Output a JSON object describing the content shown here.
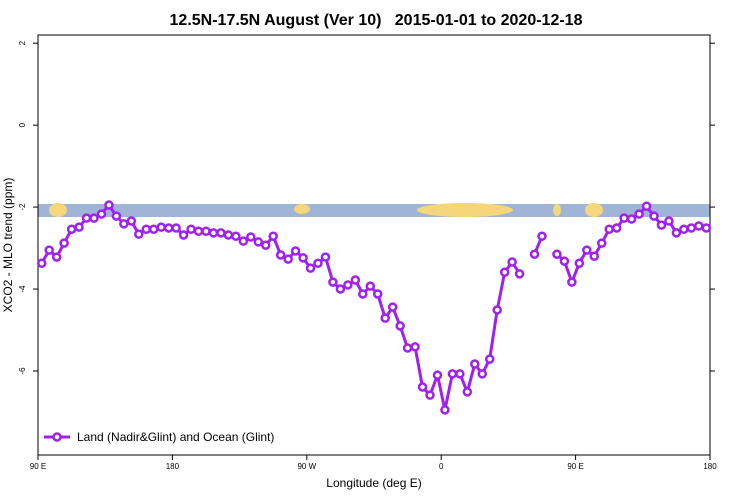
{
  "chart_data": {
    "type": "line",
    "title": "12.5N-17.5N August (Ver 10)   2015-01-01 to 2020-12-18",
    "xlabel": "Longitude (deg E)",
    "ylabel": "XCO2 - MLO trend (ppm)",
    "xlim": [
      90,
      540
    ],
    "ylim": [
      -8.05,
      2.2
    ],
    "xticks": [
      {
        "value": 90,
        "label": "90 E"
      },
      180,
      {
        "value": 270,
        "label": "90 W"
      },
      {
        "value": 360,
        "label": "0"
      },
      {
        "value": 450,
        "label": "90 E"
      },
      {
        "value": 540,
        "label": "180"
      }
    ],
    "yticks": [
      -6,
      -4,
      -2,
      0,
      2
    ],
    "legend": "bottom-left",
    "x": [
      92.5,
      97.5,
      102.5,
      107.5,
      112.5,
      117.5,
      122.5,
      127.5,
      132.5,
      137.5,
      142.5,
      147.5,
      152.5,
      157.5,
      162.5,
      167.5,
      172.5,
      177.5,
      182.5,
      187.5,
      192.5,
      197.5,
      202.5,
      207.5,
      212.5,
      217.5,
      222.5,
      227.5,
      232.5,
      237.5,
      242.5,
      247.5,
      252.5,
      257.5,
      262.5,
      267.5,
      272.5,
      277.5,
      282.5,
      287.5,
      292.5,
      297.5,
      302.5,
      307.5,
      312.5,
      317.5,
      322.5,
      327.5,
      332.5,
      337.5,
      342.5,
      347.5,
      352.5,
      357.5,
      362.5,
      367.5,
      372.5,
      377.5,
      382.5,
      387.5,
      392.5,
      397.5,
      402.5,
      407.5,
      412.5,
      417.5,
      422.5,
      427.5,
      432.5,
      437.5,
      442.5,
      447.5,
      452.5,
      457.5,
      462.5,
      467.5,
      472.5,
      477.5,
      482.5,
      487.5,
      492.5,
      497.5,
      502.5,
      507.5,
      512.5,
      517.5,
      522.5,
      527.5,
      532.5,
      537.5
    ],
    "series": [
      {
        "name": "Land (Nadir&Glint) and Ocean (Glint)",
        "color": "#a020f0",
        "values": [
          -3.37,
          -3.05,
          -3.22,
          -2.88,
          -2.54,
          -2.49,
          -2.27,
          -2.27,
          -2.17,
          -1.95,
          -2.22,
          -2.41,
          -2.34,
          -2.66,
          -2.54,
          -2.54,
          -2.49,
          -2.51,
          -2.51,
          -2.68,
          -2.54,
          -2.59,
          -2.59,
          -2.63,
          -2.63,
          -2.68,
          -2.71,
          -2.83,
          -2.73,
          -2.85,
          -2.93,
          -2.71,
          -3.17,
          -3.27,
          -3.07,
          -3.24,
          -3.49,
          -3.37,
          -3.22,
          -3.83,
          -4.0,
          -3.9,
          -3.78,
          -4.12,
          -3.93,
          -4.12,
          -4.71,
          -4.44,
          -4.9,
          -5.44,
          -5.41,
          -6.39,
          -6.59,
          -6.1,
          -6.95,
          -6.07,
          -6.07,
          -6.51,
          -5.83,
          -6.07,
          -5.71,
          -4.51,
          -3.59,
          -3.34,
          -3.63,
          null,
          -3.15,
          -2.71,
          null,
          -3.15,
          -3.32,
          -3.83,
          -3.37,
          -3.05,
          -3.2,
          -2.88,
          -2.54,
          -2.51,
          -2.27,
          -2.29,
          -2.17,
          -1.98,
          -2.22,
          -2.44,
          -2.34,
          -2.63,
          -2.54,
          -2.51,
          -2.46,
          -2.51
        ]
      }
    ]
  }
}
